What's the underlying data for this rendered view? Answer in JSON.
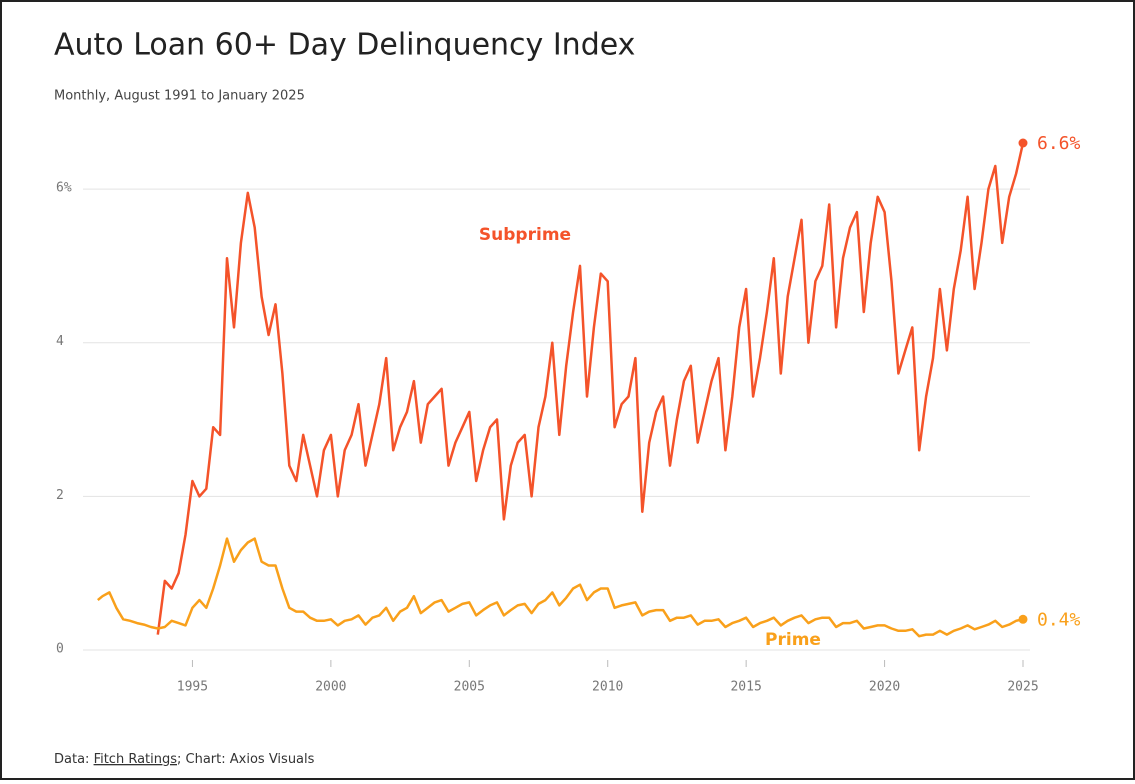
{
  "chart_data": {
    "type": "line",
    "title": "Auto Loan 60+ Day Delinquency Index",
    "subtitle": "Monthly, August 1991 to January 2025",
    "source_prefix": "Data:",
    "source_link": "Fitch Ratings",
    "source_suffix": "; Chart: Axios Visuals",
    "xlim": [
      1991.3,
      2025
    ],
    "xticks": [
      1995,
      2000,
      2005,
      2010,
      2015,
      2020,
      2025
    ],
    "ylim": [
      0,
      6.6
    ],
    "yticks": [
      0,
      2,
      4,
      {
        "value": 6,
        "label": "6%"
      }
    ],
    "grid": true,
    "series": [
      {
        "name": "Subprime",
        "color": "#f4532a",
        "end_label": "6.6%",
        "x": [
          1993.75,
          1994,
          1994.25,
          1994.5,
          1994.75,
          1995,
          1995.25,
          1995.5,
          1995.75,
          1996,
          1996.25,
          1996.5,
          1996.75,
          1997,
          1997.25,
          1997.5,
          1997.75,
          1998,
          1998.25,
          1998.5,
          1998.75,
          1999,
          1999.25,
          1999.5,
          1999.75,
          2000,
          2000.25,
          2000.5,
          2000.75,
          2001,
          2001.25,
          2001.5,
          2001.75,
          2002,
          2002.25,
          2002.5,
          2002.75,
          2003,
          2003.25,
          2003.5,
          2003.75,
          2004,
          2004.25,
          2004.5,
          2004.75,
          2005,
          2005.25,
          2005.5,
          2005.75,
          2006,
          2006.25,
          2006.5,
          2006.75,
          2007,
          2007.25,
          2007.5,
          2007.75,
          2008,
          2008.25,
          2008.5,
          2008.75,
          2009,
          2009.25,
          2009.5,
          2009.75,
          2010,
          2010.25,
          2010.5,
          2010.75,
          2011,
          2011.25,
          2011.5,
          2011.75,
          2012,
          2012.25,
          2012.5,
          2012.75,
          2013,
          2013.25,
          2013.5,
          2013.75,
          2014,
          2014.25,
          2014.5,
          2014.75,
          2015,
          2015.25,
          2015.5,
          2015.75,
          2016,
          2016.25,
          2016.5,
          2016.75,
          2017,
          2017.25,
          2017.5,
          2017.75,
          2018,
          2018.25,
          2018.5,
          2018.75,
          2019,
          2019.25,
          2019.5,
          2019.75,
          2020,
          2020.25,
          2020.5,
          2020.75,
          2021,
          2021.25,
          2021.5,
          2021.75,
          2022,
          2022.25,
          2022.5,
          2022.75,
          2023,
          2023.25,
          2023.5,
          2023.75,
          2024,
          2024.25,
          2024.5,
          2024.75,
          2025
        ],
        "values": [
          0.2,
          0.9,
          0.8,
          1.0,
          1.5,
          2.2,
          2.0,
          2.1,
          2.9,
          2.8,
          5.1,
          4.2,
          5.3,
          5.95,
          5.5,
          4.6,
          4.1,
          4.5,
          3.6,
          2.4,
          2.2,
          2.8,
          2.4,
          2.0,
          2.6,
          2.8,
          2.0,
          2.6,
          2.8,
          3.2,
          2.4,
          2.8,
          3.2,
          3.8,
          2.6,
          2.9,
          3.1,
          3.5,
          2.7,
          3.2,
          3.3,
          3.4,
          2.4,
          2.7,
          2.9,
          3.1,
          2.2,
          2.6,
          2.9,
          3.0,
          1.7,
          2.4,
          2.7,
          2.8,
          2.0,
          2.9,
          3.3,
          4.0,
          2.8,
          3.7,
          4.4,
          5.0,
          3.3,
          4.2,
          4.9,
          4.8,
          2.9,
          3.2,
          3.3,
          3.8,
          1.8,
          2.7,
          3.1,
          3.3,
          2.4,
          3.0,
          3.5,
          3.7,
          2.7,
          3.1,
          3.5,
          3.8,
          2.6,
          3.3,
          4.2,
          4.7,
          3.3,
          3.8,
          4.4,
          5.1,
          3.6,
          4.6,
          5.1,
          5.6,
          4.0,
          4.8,
          5.0,
          5.8,
          4.2,
          5.1,
          5.5,
          5.7,
          4.4,
          5.3,
          5.9,
          5.7,
          4.8,
          3.6,
          3.9,
          4.2,
          2.6,
          3.3,
          3.8,
          4.7,
          3.9,
          4.7,
          5.2,
          5.9,
          4.7,
          5.3,
          6.0,
          6.3,
          5.3,
          5.9,
          6.2,
          6.6
        ]
      },
      {
        "name": "Prime",
        "color": "#f9a01b",
        "end_label": "0.4%",
        "x": [
          1991.58,
          1991.75,
          1992,
          1992.25,
          1992.5,
          1992.75,
          1993,
          1993.25,
          1993.5,
          1993.75,
          1994,
          1994.25,
          1994.5,
          1994.75,
          1995,
          1995.25,
          1995.5,
          1995.75,
          1996,
          1996.25,
          1996.5,
          1996.75,
          1997,
          1997.25,
          1997.5,
          1997.75,
          1998,
          1998.25,
          1998.5,
          1998.75,
          1999,
          1999.25,
          1999.5,
          1999.75,
          2000,
          2000.25,
          2000.5,
          2000.75,
          2001,
          2001.25,
          2001.5,
          2001.75,
          2002,
          2002.25,
          2002.5,
          2002.75,
          2003,
          2003.25,
          2003.5,
          2003.75,
          2004,
          2004.25,
          2004.5,
          2004.75,
          2005,
          2005.25,
          2005.5,
          2005.75,
          2006,
          2006.25,
          2006.5,
          2006.75,
          2007,
          2007.25,
          2007.5,
          2007.75,
          2008,
          2008.25,
          2008.5,
          2008.75,
          2009,
          2009.25,
          2009.5,
          2009.75,
          2010,
          2010.25,
          2010.5,
          2010.75,
          2011,
          2011.25,
          2011.5,
          2011.75,
          2012,
          2012.25,
          2012.5,
          2012.75,
          2013,
          2013.25,
          2013.5,
          2013.75,
          2014,
          2014.25,
          2014.5,
          2014.75,
          2015,
          2015.25,
          2015.5,
          2015.75,
          2016,
          2016.25,
          2016.5,
          2016.75,
          2017,
          2017.25,
          2017.5,
          2017.75,
          2018,
          2018.25,
          2018.5,
          2018.75,
          2019,
          2019.25,
          2019.5,
          2019.75,
          2020,
          2020.25,
          2020.5,
          2020.75,
          2021,
          2021.25,
          2021.5,
          2021.75,
          2022,
          2022.25,
          2022.5,
          2022.75,
          2023,
          2023.25,
          2023.5,
          2023.75,
          2024,
          2024.25,
          2024.5,
          2024.75,
          2025
        ],
        "values": [
          0.65,
          0.7,
          0.75,
          0.55,
          0.4,
          0.38,
          0.35,
          0.33,
          0.3,
          0.28,
          0.3,
          0.38,
          0.35,
          0.32,
          0.55,
          0.65,
          0.55,
          0.8,
          1.1,
          1.45,
          1.15,
          1.3,
          1.4,
          1.45,
          1.15,
          1.1,
          1.1,
          0.8,
          0.55,
          0.5,
          0.5,
          0.42,
          0.38,
          0.38,
          0.4,
          0.32,
          0.38,
          0.4,
          0.45,
          0.33,
          0.42,
          0.45,
          0.55,
          0.38,
          0.5,
          0.55,
          0.7,
          0.48,
          0.55,
          0.62,
          0.65,
          0.5,
          0.55,
          0.6,
          0.62,
          0.45,
          0.52,
          0.58,
          0.62,
          0.45,
          0.52,
          0.58,
          0.6,
          0.48,
          0.6,
          0.65,
          0.75,
          0.58,
          0.68,
          0.8,
          0.85,
          0.65,
          0.75,
          0.8,
          0.8,
          0.55,
          0.58,
          0.6,
          0.62,
          0.45,
          0.5,
          0.52,
          0.52,
          0.38,
          0.42,
          0.42,
          0.45,
          0.33,
          0.38,
          0.38,
          0.4,
          0.3,
          0.35,
          0.38,
          0.42,
          0.3,
          0.35,
          0.38,
          0.42,
          0.32,
          0.38,
          0.42,
          0.45,
          0.35,
          0.4,
          0.42,
          0.42,
          0.3,
          0.35,
          0.35,
          0.38,
          0.28,
          0.3,
          0.32,
          0.32,
          0.28,
          0.25,
          0.25,
          0.27,
          0.18,
          0.2,
          0.2,
          0.25,
          0.2,
          0.25,
          0.28,
          0.32,
          0.27,
          0.3,
          0.33,
          0.38,
          0.3,
          0.33,
          0.38,
          0.4
        ]
      }
    ]
  }
}
